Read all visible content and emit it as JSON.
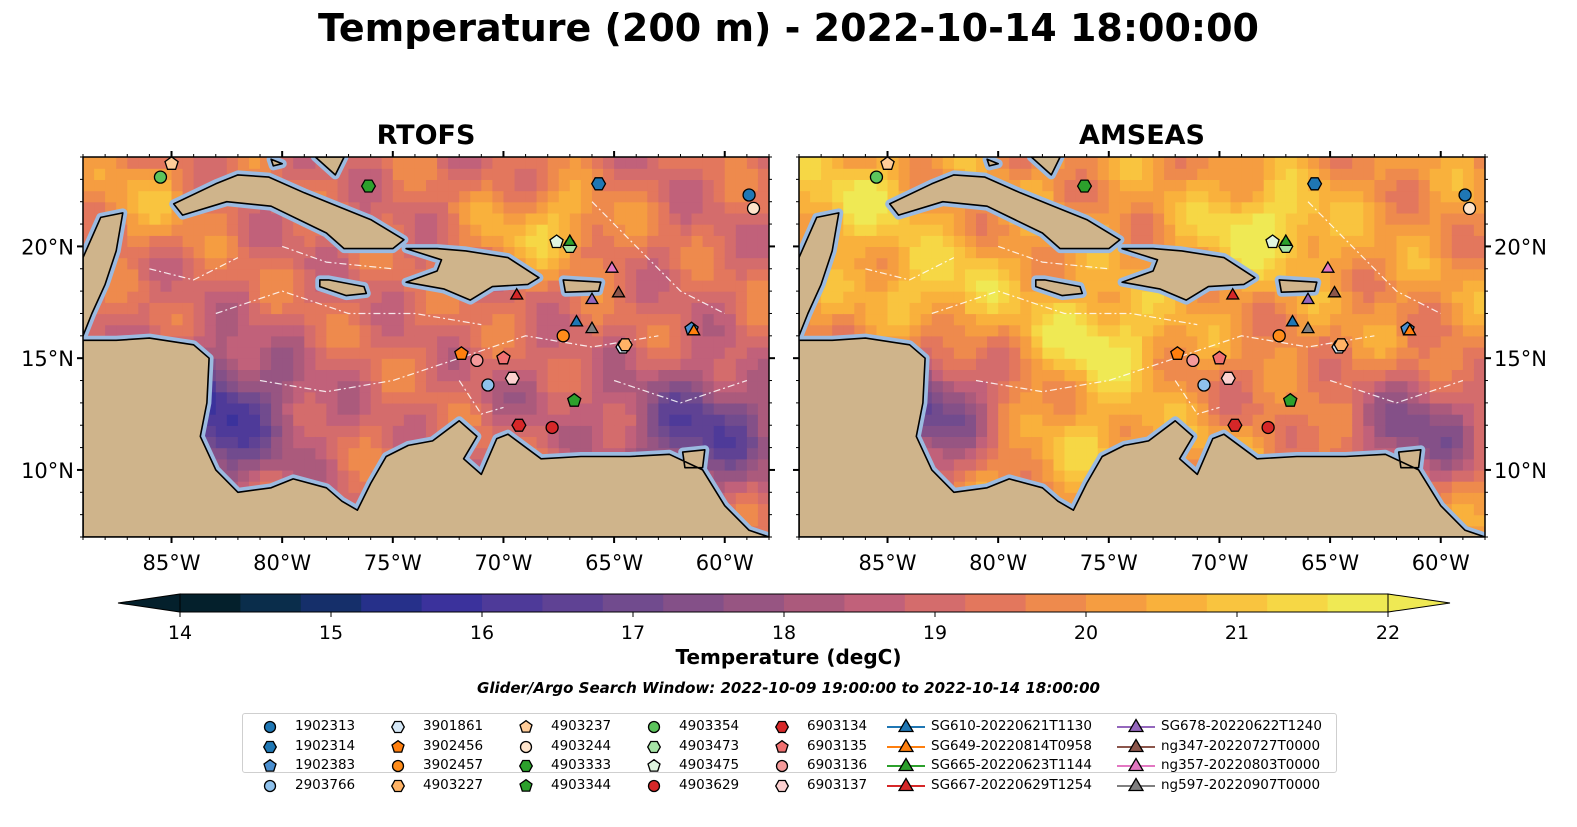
{
  "title": "Temperature (200 m) - 2022-10-14 18:00:00",
  "panels": [
    {
      "title": "RTOFS"
    },
    {
      "title": "AMSEAS"
    }
  ],
  "map": {
    "lon_range": [
      -89,
      -58
    ],
    "lat_range": [
      7,
      24
    ],
    "lon_ticks": [
      "85°W",
      "80°W",
      "75°W",
      "70°W",
      "65°W",
      "60°W"
    ],
    "lat_ticks": [
      "20°N",
      "15°N",
      "10°N"
    ],
    "colors": {
      "land": "#cfb48b",
      "shelf_water": "#9bbae0",
      "coast": "#000000"
    }
  },
  "colorbar": {
    "label": "Temperature (degC)",
    "min": 14,
    "max": 22,
    "ticks": [
      "14",
      "15",
      "16",
      "17",
      "18",
      "19",
      "20",
      "21",
      "22"
    ],
    "colors": [
      "#04202c",
      "#0a2d4b",
      "#152f6a",
      "#26308a",
      "#3b329c",
      "#4e3a99",
      "#5f4294",
      "#714b8e",
      "#845088",
      "#975582",
      "#ab5a7c",
      "#c1617a",
      "#d46c6c",
      "#e3775d",
      "#ee8a4d",
      "#f59d41",
      "#f9b13c",
      "#f9c43f",
      "#f6d745",
      "#efe954"
    ],
    "extend": "both"
  },
  "search_window": "Glider/Argo Search Window: 2022-10-09 19:00:00 to 2022-10-14 18:00:00",
  "legend": [
    {
      "label": "1902313",
      "marker": "circle",
      "color": "#1f77b4"
    },
    {
      "label": "1902314",
      "marker": "hexagon",
      "color": "#1f77b4"
    },
    {
      "label": "1902383",
      "marker": "pentagon",
      "color": "#4a8fd0"
    },
    {
      "label": "2903766",
      "marker": "circle",
      "color": "#8ec1ec"
    },
    {
      "label": "3901861",
      "marker": "hexagon",
      "color": "#d6e8f7"
    },
    {
      "label": "3902456",
      "marker": "pentagon",
      "color": "#ff7f0e"
    },
    {
      "label": "3902457",
      "marker": "circle",
      "color": "#ff8c1a"
    },
    {
      "label": "4903227",
      "marker": "hexagon",
      "color": "#ffb366"
    },
    {
      "label": "4903237",
      "marker": "pentagon",
      "color": "#ffcc99"
    },
    {
      "label": "4903244",
      "marker": "circle",
      "color": "#ffe5cc"
    },
    {
      "label": "4903333",
      "marker": "hexagon",
      "color": "#2ca02c"
    },
    {
      "label": "4903344",
      "marker": "pentagon",
      "color": "#2ca02c"
    },
    {
      "label": "4903354",
      "marker": "circle",
      "color": "#5cc45c"
    },
    {
      "label": "4903473",
      "marker": "hexagon",
      "color": "#a6e3a6"
    },
    {
      "label": "4903475",
      "marker": "pentagon",
      "color": "#e0f5e0"
    },
    {
      "label": "4903629",
      "marker": "circle",
      "color": "#d62728"
    },
    {
      "label": "6903134",
      "marker": "hexagon",
      "color": "#d62728"
    },
    {
      "label": "6903135",
      "marker": "pentagon",
      "color": "#f07070"
    },
    {
      "label": "6903136",
      "marker": "circle",
      "color": "#f59a9a"
    },
    {
      "label": "6903137",
      "marker": "hexagon",
      "color": "#fcd0d0"
    },
    {
      "label": "SG610-20220621T1130",
      "marker": "triangle-line",
      "color": "#1f77b4"
    },
    {
      "label": "SG649-20220814T0958",
      "marker": "triangle-line",
      "color": "#ff7f0e"
    },
    {
      "label": "SG665-20220623T1144",
      "marker": "triangle-line",
      "color": "#2ca02c"
    },
    {
      "label": "SG667-20220629T1254",
      "marker": "triangle-line",
      "color": "#d62728"
    },
    {
      "label": "SG678-20220622T1240",
      "marker": "triangle-line",
      "color": "#9467bd"
    },
    {
      "label": "ng347-20220727T0000",
      "marker": "triangle-line",
      "color": "#8c564b"
    },
    {
      "label": "ng357-20220803T0000",
      "marker": "triangle-line",
      "color": "#e377c2"
    },
    {
      "label": "ng597-20220907T0000",
      "marker": "triangle-line",
      "color": "#7f7f7f"
    }
  ],
  "platforms": [
    {
      "id": "1902313",
      "lon": -58.9,
      "lat": 22.3
    },
    {
      "id": "1902314",
      "lon": -65.7,
      "lat": 22.8
    },
    {
      "id": "1902383",
      "lon": -61.5,
      "lat": 16.3
    },
    {
      "id": "2903766",
      "lon": -70.7,
      "lat": 13.8
    },
    {
      "id": "3901861",
      "lon": -64.6,
      "lat": 15.5
    },
    {
      "id": "3902456",
      "lon": -71.9,
      "lat": 15.2
    },
    {
      "id": "3902457",
      "lon": -67.3,
      "lat": 16.0
    },
    {
      "id": "4903227",
      "lon": -64.5,
      "lat": 15.6
    },
    {
      "id": "4903237",
      "lon": -85.0,
      "lat": 23.7
    },
    {
      "id": "4903244",
      "lon": -58.7,
      "lat": 21.7
    },
    {
      "id": "4903333",
      "lon": -76.1,
      "lat": 22.7
    },
    {
      "id": "4903344",
      "lon": -66.8,
      "lat": 13.1
    },
    {
      "id": "4903354",
      "lon": -85.5,
      "lat": 23.1
    },
    {
      "id": "4903473",
      "lon": -67.0,
      "lat": 20.0
    },
    {
      "id": "4903475",
      "lon": -67.6,
      "lat": 20.2
    },
    {
      "id": "4903629",
      "lon": -67.8,
      "lat": 11.9
    },
    {
      "id": "6903134",
      "lon": -69.3,
      "lat": 12.0
    },
    {
      "id": "6903135",
      "lon": -70.0,
      "lat": 15.0
    },
    {
      "id": "6903136",
      "lon": -71.2,
      "lat": 14.9
    },
    {
      "id": "6903137",
      "lon": -69.6,
      "lat": 14.1
    },
    {
      "id": "SG610-20220621T1130",
      "lon": -66.7,
      "lat": 16.6
    },
    {
      "id": "SG649-20220814T0958",
      "lon": -61.4,
      "lat": 16.2
    },
    {
      "id": "SG665-20220623T1144",
      "lon": -67.0,
      "lat": 20.2
    },
    {
      "id": "SG667-20220629T1254",
      "lon": -69.4,
      "lat": 17.8
    },
    {
      "id": "SG678-20220622T1240",
      "lon": -66.0,
      "lat": 17.6
    },
    {
      "id": "ng347-20220727T0000",
      "lon": -64.8,
      "lat": 17.9
    },
    {
      "id": "ng357-20220803T0000",
      "lon": -65.1,
      "lat": 19.0
    },
    {
      "id": "ng597-20220907T0000",
      "lon": -66.0,
      "lat": 16.3
    }
  ]
}
